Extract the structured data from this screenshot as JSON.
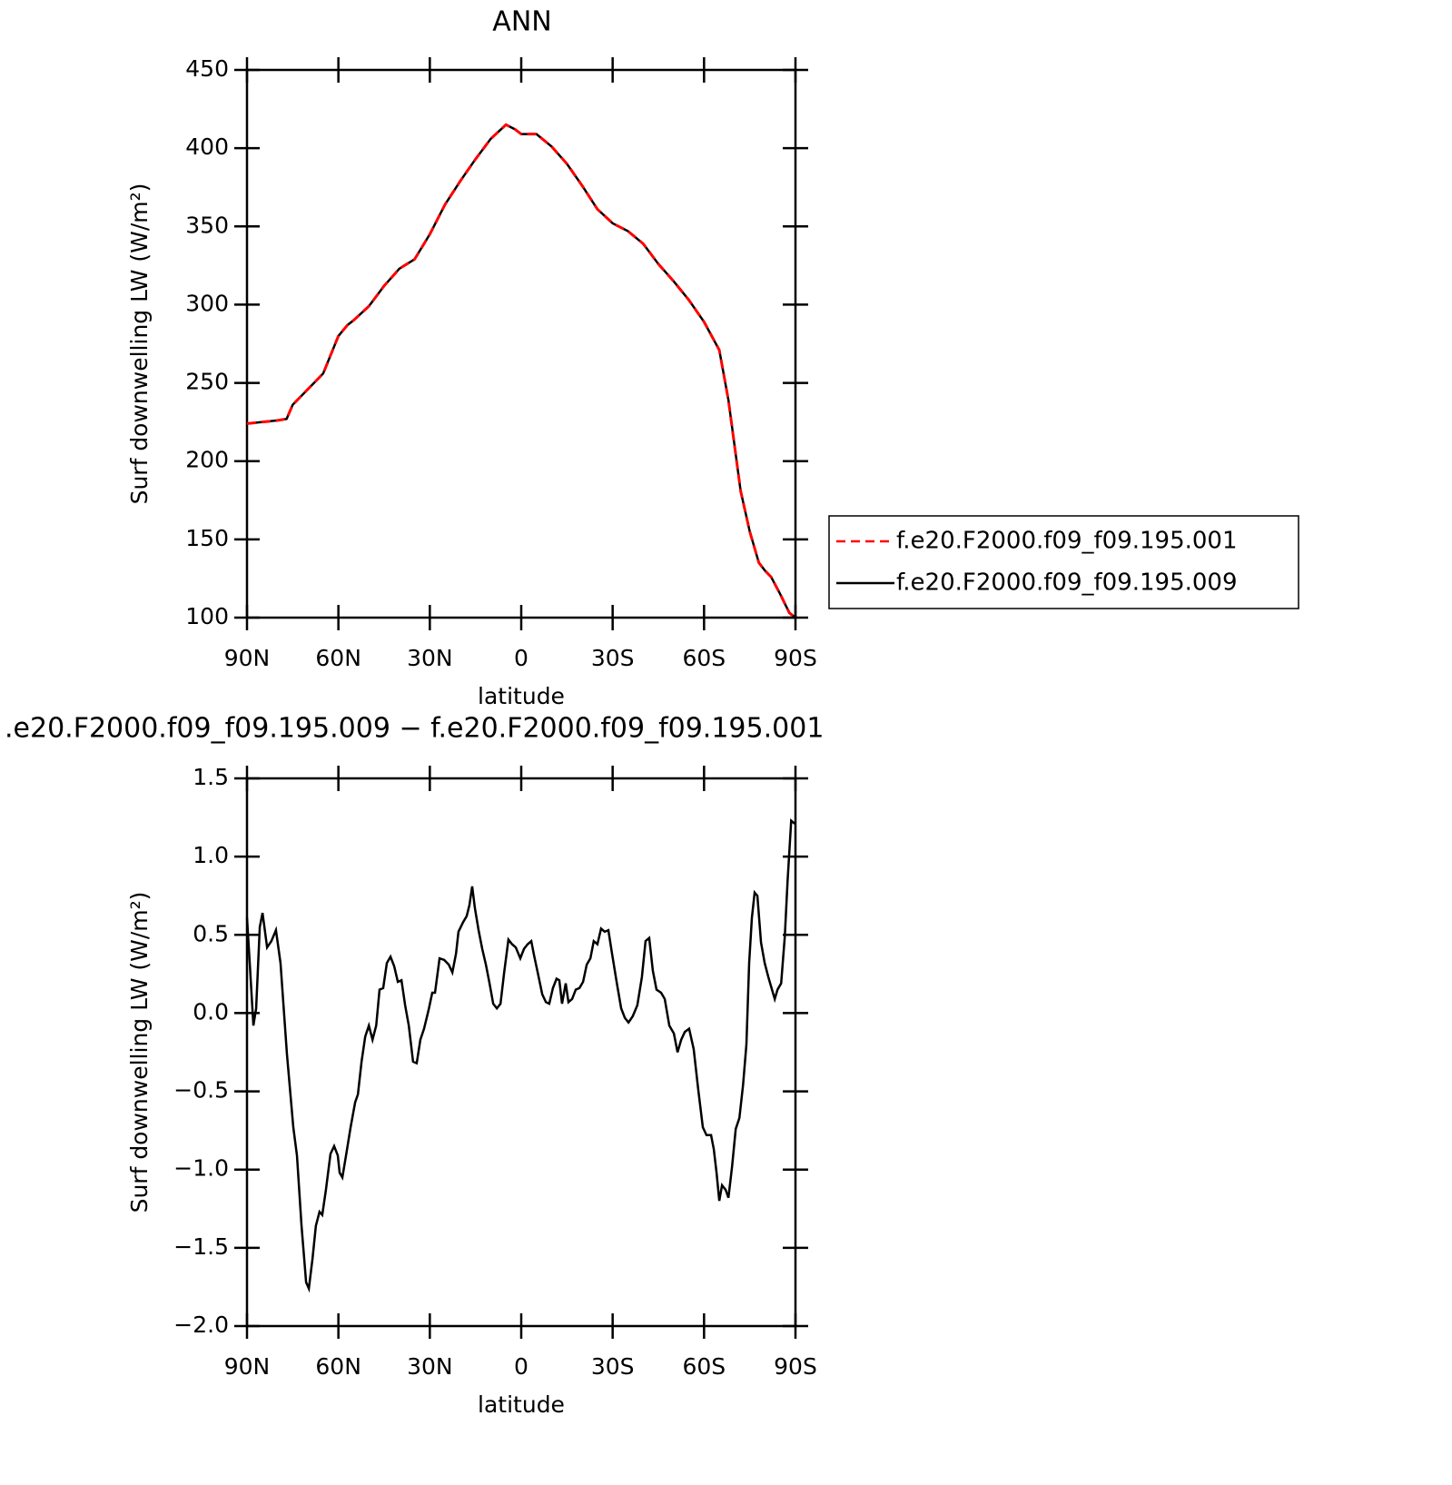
{
  "chart_data": [
    {
      "type": "line",
      "title": "ANN",
      "xlabel": "latitude",
      "ylabel": "Surf downwelling LW (W/m²)",
      "xlim": [
        90,
        -90
      ],
      "xticks": [
        {
          "value": 90,
          "label": "90N"
        },
        {
          "value": 60,
          "label": "60N"
        },
        {
          "value": 30,
          "label": "30N"
        },
        0,
        {
          "value": -30,
          "label": "30S"
        },
        {
          "value": -60,
          "label": "60S"
        },
        {
          "value": -90,
          "label": "90S"
        }
      ],
      "ylim": [
        100,
        450
      ],
      "yticks": [
        100,
        150,
        200,
        250,
        300,
        350,
        400,
        450
      ],
      "legend": "right",
      "x": [
        90,
        85,
        80,
        77,
        75,
        70,
        65,
        60,
        57,
        55,
        50,
        45,
        40,
        35,
        30,
        25,
        20,
        15,
        10,
        5,
        2,
        0,
        -5,
        -10,
        -15,
        -20,
        -25,
        -30,
        -35,
        -40,
        -45,
        -50,
        -55,
        -60,
        -65,
        -68,
        -70,
        -72,
        -75,
        -78,
        -80,
        -82,
        -85,
        -88,
        -90
      ],
      "series": [
        {
          "name": "f.e20.F2000.f09_f09.195.001",
          "color": "#ff0000",
          "line_style": "dashed",
          "values": [
            224,
            225,
            226,
            227,
            236,
            246,
            256,
            280,
            287,
            290,
            299,
            312,
            323,
            329,
            345,
            364,
            379,
            393,
            406,
            415,
            412,
            409,
            409,
            401,
            390,
            376,
            361,
            352,
            347,
            339,
            326,
            315,
            303,
            289,
            271,
            239,
            210,
            181,
            155,
            135,
            130,
            126,
            115,
            103,
            100
          ]
        },
        {
          "name": "f.e20.F2000.f09_f09.195.009",
          "color": "#000000",
          "line_style": "solid",
          "values": [
            224,
            225,
            226,
            227,
            236,
            246,
            256,
            280,
            287,
            290,
            299,
            312,
            323,
            329,
            345,
            364,
            379,
            393,
            406,
            415,
            412,
            409,
            409,
            401,
            390,
            376,
            361,
            352,
            347,
            339,
            326,
            315,
            303,
            289,
            271,
            239,
            210,
            181,
            155,
            135,
            130,
            126,
            115,
            103,
            100
          ]
        }
      ]
    },
    {
      "type": "line",
      "title": ".e20.F2000.f09_f09.195.009 − f.e20.F2000.f09_f09.195.001",
      "xlabel": "latitude",
      "ylabel": "Surf downwelling LW (W/m²)",
      "xlim": [
        90,
        -90
      ],
      "xticks": [
        {
          "value": 90,
          "label": "90N"
        },
        {
          "value": 60,
          "label": "60N"
        },
        {
          "value": 30,
          "label": "30N"
        },
        0,
        {
          "value": -30,
          "label": "30S"
        },
        {
          "value": -60,
          "label": "60S"
        },
        {
          "value": -90,
          "label": "90S"
        }
      ],
      "ylim": [
        -2.0,
        1.5
      ],
      "yticks": [
        {
          "value": -2.0,
          "label": "−2.0"
        },
        {
          "value": -1.5,
          "label": "−1.5"
        },
        {
          "value": -1.0,
          "label": "−1.0"
        },
        {
          "value": -0.5,
          "label": "−0.5"
        },
        {
          "value": 0,
          "label": "0.0"
        },
        0.5,
        {
          "value": 1.0,
          "label": "1.0"
        },
        1.5
      ],
      "x": [
        90,
        89.1,
        87.9,
        87,
        85.8,
        84.9,
        83.4,
        82,
        80.5,
        79,
        76.9,
        74.8,
        73.6,
        72.1,
        70.6,
        69.7,
        68.5,
        67.4,
        66.2,
        65.3,
        64.1,
        62.6,
        61.4,
        60.2,
        59.6,
        58.7,
        57.5,
        56,
        54.5,
        53.6,
        52.4,
        51.2,
        50,
        48.8,
        47.6,
        46.5,
        45.3,
        44.1,
        42.9,
        41.7,
        40.5,
        39.3,
        38.1,
        36.9,
        35.5,
        34.3,
        33.1,
        31.9,
        30.4,
        29.2,
        28.3,
        26.8,
        25.3,
        23.8,
        22.6,
        21.4,
        20.6,
        19.1,
        17.9,
        17,
        16.1,
        15.2,
        14,
        12.8,
        11.6,
        10.4,
        9.2,
        8,
        6.8,
        5.6,
        4.2,
        3,
        1.8,
        0.3,
        -0.9,
        -2.1,
        -3.3,
        -4.2,
        -5.4,
        -6.9,
        -8.1,
        -9.2,
        -10.4,
        -11.6,
        -12.5,
        -13.4,
        -14.6,
        -15.5,
        -16.7,
        -17.9,
        -19.1,
        -20.3,
        -21.5,
        -22.7,
        -23.8,
        -25,
        -26.2,
        -27.4,
        -28.6,
        -29.8,
        -31.3,
        -32.8,
        -34,
        -35.2,
        -36.6,
        -38.1,
        -39.6,
        -40.8,
        -42,
        -43.2,
        -44.4,
        -45.9,
        -47.1,
        -48.6,
        -50.1,
        -51.3,
        -52.5,
        -53.7,
        -55.1,
        -56.6,
        -58.1,
        -59.6,
        -60.8,
        -62.3,
        -63.2,
        -64.1,
        -65,
        -65.9,
        -67.1,
        -68,
        -69.2,
        -70.4,
        -71.6,
        -72.8,
        -73.9,
        -74.8,
        -75.7,
        -76.6,
        -77.5,
        -78.7,
        -79.9,
        -81.1,
        -82.3,
        -83.2,
        -84.1,
        -85.3,
        -86.5,
        -87.4,
        -88.6,
        -89.8
      ],
      "series": [
        {
          "color": "#000000",
          "line_style": "solid",
          "values": [
            0.61,
            0.32,
            -0.08,
            0.03,
            0.55,
            0.64,
            0.42,
            0.46,
            0.53,
            0.32,
            -0.26,
            -0.73,
            -0.91,
            -1.36,
            -1.72,
            -1.76,
            -1.57,
            -1.36,
            -1.27,
            -1.29,
            -1.13,
            -0.9,
            -0.85,
            -0.91,
            -1.02,
            -1.05,
            -0.91,
            -0.73,
            -0.57,
            -0.52,
            -0.31,
            -0.15,
            -0.08,
            -0.17,
            -0.08,
            0.15,
            0.16,
            0.32,
            0.36,
            0.3,
            0.2,
            0.21,
            0.05,
            -0.08,
            -0.31,
            -0.32,
            -0.17,
            -0.1,
            0.02,
            0.13,
            0.13,
            0.35,
            0.34,
            0.31,
            0.26,
            0.38,
            0.52,
            0.58,
            0.62,
            0.69,
            0.81,
            0.67,
            0.53,
            0.41,
            0.31,
            0.19,
            0.06,
            0.03,
            0.06,
            0.26,
            0.47,
            0.44,
            0.42,
            0.35,
            0.41,
            0.44,
            0.46,
            0.37,
            0.26,
            0.12,
            0.07,
            0.06,
            0.16,
            0.22,
            0.21,
            0.06,
            0.19,
            0.07,
            0.09,
            0.15,
            0.16,
            0.2,
            0.31,
            0.35,
            0.46,
            0.44,
            0.54,
            0.52,
            0.53,
            0.38,
            0.2,
            0.03,
            -0.03,
            -0.06,
            -0.02,
            0.05,
            0.23,
            0.46,
            0.48,
            0.27,
            0.15,
            0.13,
            0.09,
            -0.08,
            -0.13,
            -0.25,
            -0.17,
            -0.12,
            -0.1,
            -0.23,
            -0.49,
            -0.73,
            -0.78,
            -0.78,
            -0.87,
            -1.02,
            -1.2,
            -1.1,
            -1.13,
            -1.18,
            -0.98,
            -0.74,
            -0.67,
            -0.46,
            -0.2,
            0.32,
            0.61,
            0.77,
            0.75,
            0.45,
            0.32,
            0.23,
            0.15,
            0.09,
            0.15,
            0.19,
            0.49,
            0.84,
            1.23,
            1.21
          ]
        }
      ]
    }
  ]
}
